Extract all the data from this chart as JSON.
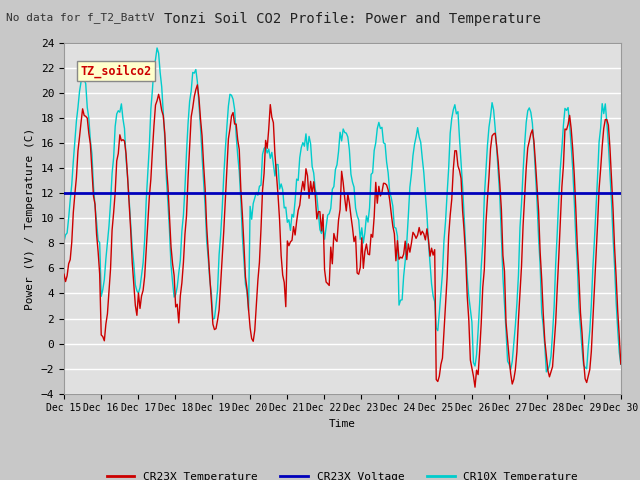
{
  "title": "Tonzi Soil CO2 Profile: Power and Temperature",
  "subtitle": "No data for f_T2_BattV",
  "ylabel": "Power (V) / Temperature (C)",
  "xlabel": "Time",
  "ylim": [
    -4,
    24
  ],
  "yticks": [
    -4,
    -2,
    0,
    2,
    4,
    6,
    8,
    10,
    12,
    14,
    16,
    18,
    20,
    22,
    24
  ],
  "voltage_value": 12.0,
  "voltage_color": "#0000bb",
  "cr23x_temp_color": "#cc0000",
  "cr10x_temp_color": "#00cccc",
  "fig_facecolor": "#c8c8c8",
  "ax_facecolor": "#e0e0e0",
  "grid_color": "#ffffff",
  "annotation_box_color": "#ffffcc",
  "annotation_text_color": "#cc0000",
  "annotation_text": "TZ_soilco2",
  "x_tick_labels": [
    "Dec 15",
    "Dec 16",
    "Dec 17",
    "Dec 18",
    "Dec 19",
    "Dec 20",
    "Dec 21",
    "Dec 22",
    "Dec 23",
    "Dec 24",
    "Dec 25",
    "Dec 26",
    "Dec 27",
    "Dec 28",
    "Dec 29",
    "Dec 30"
  ],
  "legend_entries": [
    "CR23X Temperature",
    "CR23X Voltage",
    "CR10X Temperature"
  ]
}
